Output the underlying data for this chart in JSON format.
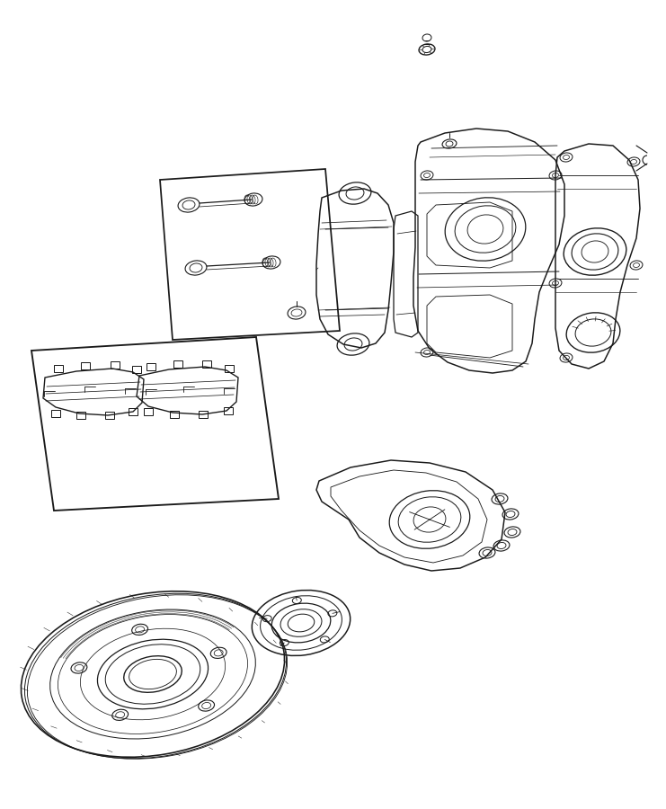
{
  "background_color": "#ffffff",
  "line_color": "#1a1a1a",
  "line_width": 0.9,
  "fig_width": 7.41,
  "fig_height": 9.0,
  "dpi": 100,
  "xlim": [
    0,
    741
  ],
  "ylim": [
    0,
    900
  ]
}
